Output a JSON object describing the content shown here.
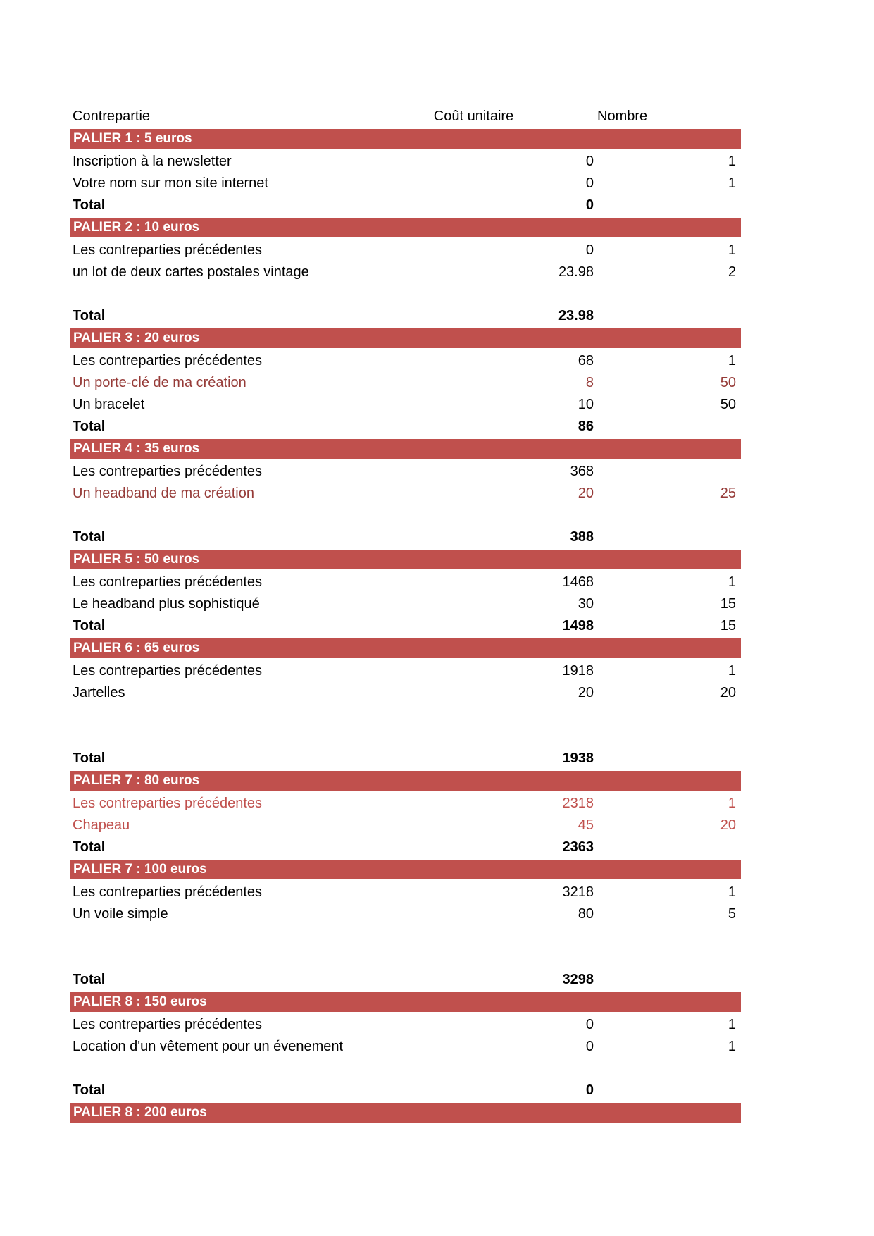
{
  "colors": {
    "tier_bar_bg": "#C0504D",
    "tier_bar_text": "#FFFFFF",
    "accent_red": "#C0504D",
    "accent_red_dark": "#963B38",
    "body_text": "#000000",
    "page_bg": "#FFFFFF"
  },
  "header": {
    "contrepartie": "Contrepartie",
    "cout_unitaire": "Coût unitaire",
    "nombre": "Nombre"
  },
  "rows": [
    {
      "type": "tier",
      "label": "PALIER 1 : 5 euros"
    },
    {
      "type": "item",
      "label": "Inscription à la newsletter",
      "cost": "0",
      "count": "1"
    },
    {
      "type": "item",
      "label": "Votre nom sur mon site internet",
      "cost": "0",
      "count": "1"
    },
    {
      "type": "total",
      "label": "Total",
      "cost": "0",
      "count": ""
    },
    {
      "type": "tier",
      "label": "PALIER 2 : 10 euros"
    },
    {
      "type": "item",
      "label": "Les contreparties précédentes",
      "cost": "0",
      "count": "1"
    },
    {
      "type": "item",
      "label": "un lot de deux cartes postales vintage",
      "cost": "23.98",
      "count": "2"
    },
    {
      "type": "blank"
    },
    {
      "type": "total",
      "label": "Total",
      "cost": "23.98",
      "count": ""
    },
    {
      "type": "tier",
      "label": "PALIER 3 : 20 euros"
    },
    {
      "type": "item",
      "label": "Les contreparties précédentes",
      "cost": "68",
      "count": "1"
    },
    {
      "type": "item",
      "label": "Un porte-clé de ma création",
      "cost": "8",
      "count": "50",
      "style": "red-dark"
    },
    {
      "type": "item",
      "label": "Un bracelet",
      "cost": "10",
      "count": "50"
    },
    {
      "type": "total",
      "label": "Total",
      "cost": "86",
      "count": ""
    },
    {
      "type": "tier",
      "label": "PALIER 4 : 35 euros"
    },
    {
      "type": "item",
      "label": "Les contreparties précédentes",
      "cost": "368",
      "count": ""
    },
    {
      "type": "item",
      "label": "Un headband de ma création",
      "cost": "20",
      "count": "25",
      "style": "red-dark"
    },
    {
      "type": "blank"
    },
    {
      "type": "total",
      "label": "Total",
      "cost": "388",
      "count": ""
    },
    {
      "type": "tier",
      "label": "PALIER 5 : 50 euros"
    },
    {
      "type": "item",
      "label": "Les contreparties précédentes",
      "cost": "1468",
      "count": "1"
    },
    {
      "type": "item",
      "label": "Le headband plus sophistiqué",
      "cost": "30",
      "count": "15"
    },
    {
      "type": "total",
      "label": "Total",
      "cost": "1498",
      "count": "15"
    },
    {
      "type": "tier",
      "label": "PALIER 6 : 65 euros"
    },
    {
      "type": "item",
      "label": "Les contreparties précédentes",
      "cost": "1918",
      "count": "1"
    },
    {
      "type": "item",
      "label": "Jartelles",
      "cost": "20",
      "count": "20"
    },
    {
      "type": "blank"
    },
    {
      "type": "blank"
    },
    {
      "type": "total",
      "label": "Total",
      "cost": "1938",
      "count": ""
    },
    {
      "type": "tier",
      "label": "PALIER 7 : 80 euros"
    },
    {
      "type": "item",
      "label": "Les contreparties précédentes",
      "cost": "2318",
      "count": "1",
      "style": "red"
    },
    {
      "type": "item",
      "label": "Chapeau",
      "cost": "45",
      "count": "20",
      "style": "red"
    },
    {
      "type": "total",
      "label": "Total",
      "cost": "2363",
      "count": ""
    },
    {
      "type": "tier",
      "label": "PALIER 7 : 100 euros"
    },
    {
      "type": "item",
      "label": "Les contreparties précédentes",
      "cost": "3218",
      "count": "1"
    },
    {
      "type": "item",
      "label": "Un voile simple",
      "cost": "80",
      "count": "5"
    },
    {
      "type": "blank"
    },
    {
      "type": "blank"
    },
    {
      "type": "total",
      "label": "Total",
      "cost": "3298",
      "count": ""
    },
    {
      "type": "tier",
      "label": "PALIER 8 : 150 euros"
    },
    {
      "type": "item",
      "label": "Les contreparties précédentes",
      "cost": "0",
      "count": "1"
    },
    {
      "type": "item",
      "label": "Location d'un vêtement pour un évenement",
      "cost": "0",
      "count": "1"
    },
    {
      "type": "blank"
    },
    {
      "type": "total",
      "label": "Total",
      "cost": "0",
      "count": ""
    },
    {
      "type": "tier",
      "label": "PALIER 8 : 200 euros"
    }
  ]
}
